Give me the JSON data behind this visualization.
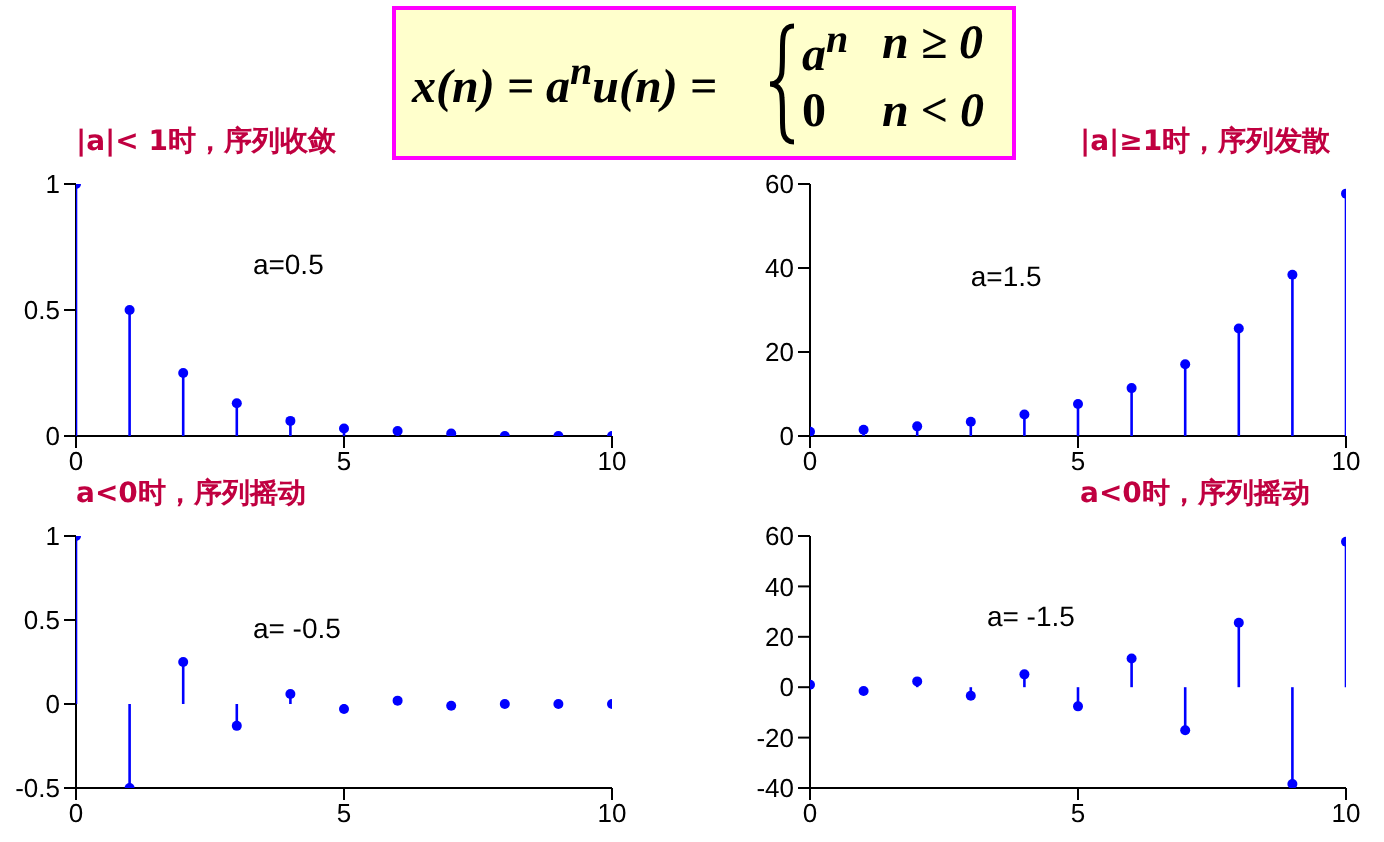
{
  "chart_data": [
    {
      "type": "other",
      "annotations": [
        "x(n) = a$^{n}$u(n) =",
        "a$^{n}$",
        "n ≥ 0",
        "0",
        "n < 0"
      ]
    },
    {
      "type": "lollipop",
      "title": "|a|< 1时，序列收敛",
      "annotations": [
        "a=0.5"
      ],
      "x": [
        0,
        1,
        2,
        3,
        4,
        5,
        6,
        7,
        8,
        9,
        10
      ],
      "values": [
        1,
        0.5,
        0.25,
        0.13,
        0.06,
        0.03,
        0.02,
        0.01,
        0,
        0,
        0
      ],
      "color": "#0000ff",
      "marker": "circle",
      "xlim": [
        0,
        10
      ],
      "xticks": [
        0,
        5,
        10
      ],
      "ylim": [
        0,
        1
      ],
      "yticks": [
        0,
        0.5,
        1
      ]
    },
    {
      "type": "lollipop",
      "title": "|a|≥1时，序列发散",
      "annotations": [
        "a=1.5"
      ],
      "x": [
        0,
        1,
        2,
        3,
        4,
        5,
        6,
        7,
        8,
        9,
        10
      ],
      "values": [
        1,
        1.5,
        2.3,
        3.4,
        5.1,
        7.6,
        11.4,
        17.1,
        25.6,
        38.4,
        57.7
      ],
      "color": "#0000ff",
      "marker": "circle",
      "xlim": [
        0,
        10
      ],
      "xticks": [
        0,
        5,
        10
      ],
      "ylim": [
        0,
        60
      ],
      "yticks": [
        0,
        20,
        40,
        60
      ]
    },
    {
      "type": "lollipop",
      "title": "a<0时，序列摇动",
      "annotations": [
        "a= -0.5"
      ],
      "x": [
        0,
        1,
        2,
        3,
        4,
        5,
        6,
        7,
        8,
        9,
        10
      ],
      "values": [
        1,
        -0.5,
        0.25,
        -0.13,
        0.06,
        -0.03,
        0.02,
        -0.01,
        0,
        0,
        0
      ],
      "color": "#0000ff",
      "marker": "circle",
      "xlim": [
        0,
        10
      ],
      "xticks": [
        0,
        5,
        10
      ],
      "ylim": [
        -0.5,
        1
      ],
      "yticks": [
        -0.5,
        0,
        0.5,
        1
      ]
    },
    {
      "type": "lollipop",
      "title": "a<0时，序列摇动",
      "annotations": [
        "a= -1.5"
      ],
      "x": [
        0,
        1,
        2,
        3,
        4,
        5,
        6,
        7,
        8,
        9,
        10
      ],
      "values": [
        1,
        -1.5,
        2.3,
        -3.4,
        5.1,
        -7.6,
        11.4,
        -17.1,
        25.6,
        -38.4,
        57.7
      ],
      "color": "#0000ff",
      "marker": "circle",
      "xlim": [
        0,
        10
      ],
      "xticks": [
        0,
        5,
        10
      ],
      "ylim": [
        -40,
        60
      ],
      "yticks": [
        -40,
        -20,
        0,
        20,
        40,
        60
      ]
    }
  ]
}
